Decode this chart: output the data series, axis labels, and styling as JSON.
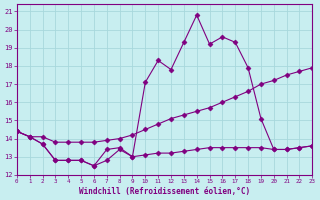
{
  "xlabel": "Windchill (Refroidissement éolien,°C)",
  "x": [
    0,
    1,
    2,
    3,
    4,
    5,
    6,
    7,
    8,
    9,
    10,
    11,
    12,
    13,
    14,
    15,
    16,
    17,
    18,
    19,
    20,
    21,
    22,
    23
  ],
  "line_upper": [
    14.4,
    14.1,
    13.7,
    12.8,
    12.8,
    12.8,
    12.5,
    13.4,
    13.5,
    13.0,
    17.1,
    18.3,
    17.8,
    19.3,
    20.8,
    19.2,
    19.6,
    19.3,
    17.9,
    15.1,
    13.4,
    13.4,
    13.5,
    13.6
  ],
  "line_mid": [
    14.4,
    14.1,
    14.1,
    13.8,
    13.8,
    13.8,
    13.8,
    13.9,
    14.0,
    14.2,
    14.5,
    14.8,
    15.1,
    15.3,
    15.5,
    15.7,
    16.0,
    16.3,
    16.6,
    17.0,
    17.2,
    17.5,
    17.7,
    17.9
  ],
  "line_lower": [
    14.4,
    14.1,
    13.7,
    12.8,
    12.8,
    12.8,
    12.5,
    12.8,
    13.4,
    13.0,
    13.1,
    13.2,
    13.2,
    13.3,
    13.4,
    13.5,
    13.5,
    13.5,
    13.5,
    13.5,
    13.4,
    13.4,
    13.5,
    13.6
  ],
  "line_color": "#800080",
  "bg_color": "#c8eef0",
  "grid_color": "#a8d8dc",
  "text_color": "#800080",
  "xlim": [
    0,
    23
  ],
  "ylim": [
    12,
    21.4
  ],
  "yticks": [
    12,
    13,
    14,
    15,
    16,
    17,
    18,
    19,
    20,
    21
  ],
  "xticks": [
    0,
    1,
    2,
    3,
    4,
    5,
    6,
    7,
    8,
    9,
    10,
    11,
    12,
    13,
    14,
    15,
    16,
    17,
    18,
    19,
    20,
    21,
    22,
    23
  ]
}
